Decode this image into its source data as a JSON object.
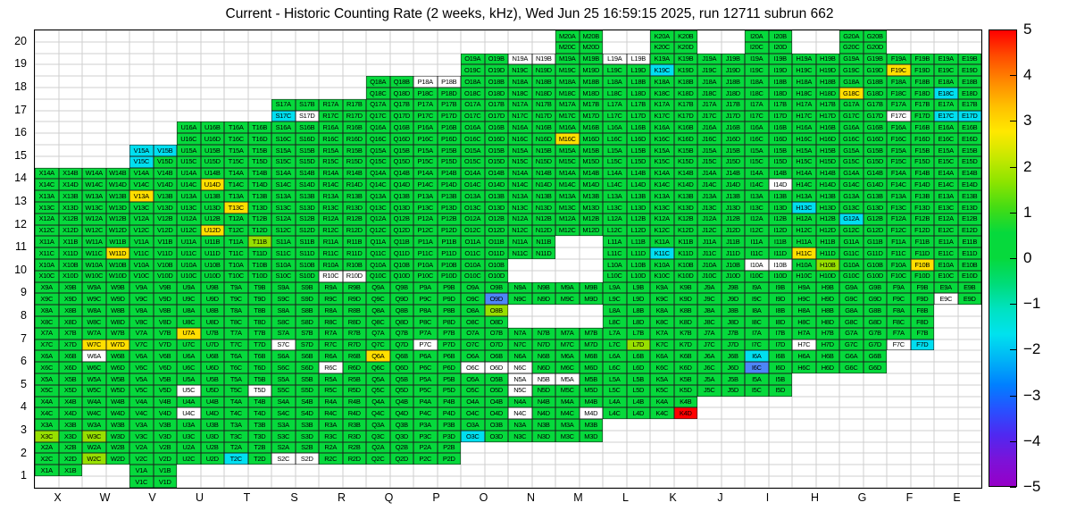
{
  "title": "Current - Historic Counting Rate (2 weeks, kHz), Wed Jun 25 16:59:15 2025, run 12711 subrun 662",
  "axes": {
    "x_labels": [
      "X",
      "W",
      "V",
      "U",
      "T",
      "S",
      "R",
      "Q",
      "P",
      "O",
      "N",
      "M",
      "L",
      "K",
      "J",
      "I",
      "H",
      "G",
      "F",
      "E"
    ],
    "y_labels": [
      "20",
      "19",
      "18",
      "17",
      "16",
      "15",
      "14",
      "13",
      "12",
      "11",
      "10",
      "9",
      "8",
      "7",
      "6",
      "5",
      "4",
      "3",
      "2",
      "1"
    ]
  },
  "colorbar": {
    "min": -5,
    "max": 5,
    "tick_labels": [
      "5",
      "4",
      "3",
      "2",
      "1",
      "0",
      "−1",
      "−2",
      "−3",
      "−4",
      "−5"
    ],
    "gradient_top_to_bottom": [
      "#ff0000",
      "#ff4b00",
      "#ff8800",
      "#ffc000",
      "#ffe800",
      "#c8e800",
      "#8ce400",
      "#44dc14",
      "#06d93c",
      "#06d93c",
      "#00dc78",
      "#00e2c0",
      "#00e2ee",
      "#00b4f6",
      "#0080ff",
      "#2850ff",
      "#5028f0",
      "#7c12d8",
      "#9600c8"
    ]
  },
  "chart_data": {
    "type": "heatmap",
    "label_format": "{col}{row}{sub}",
    "sub_labels": [
      "A",
      "B",
      "C",
      "D"
    ],
    "code_colors": {
      "g": "#06d93c",
      "l": "#97e000",
      "y": "#ffdf00",
      "r": "#ff0000",
      "c": "#00dff0",
      "b": "#4e86f8",
      "w": "#ffffff",
      "e": "transparent"
    },
    "code_values": {
      "g": 0,
      "l": 1,
      "y": 1.5,
      "r": 5,
      "c": -1.5,
      "b": -2.5,
      "w": null,
      "e": null
    },
    "rows": [
      {
        "y": 20,
        "cells": {
          "M": "gggg",
          "K": "gggg",
          "I": "gggg",
          "G": "gggg"
        }
      },
      {
        "y": 19,
        "cells": {
          "O": "gggg",
          "N": "wwgg",
          "M": "gggg",
          "L": "wwgg",
          "K": "ggcg",
          "J": "gggg",
          "I": "gggg",
          "H": "gggg",
          "G": "gggg",
          "F": "ggyg",
          "E": "gggg"
        }
      },
      {
        "y": 18,
        "cells": {
          "Q": "gggg",
          "P": "wwgg",
          "O": "gggg",
          "N": "gggg",
          "M": "gggg",
          "L": "gggg",
          "K": "gggg",
          "J": "gggg",
          "I": "gggg",
          "H": "gggg",
          "G": "ggyg",
          "F": "gggg",
          "E": "ggcg"
        }
      },
      {
        "y": 17,
        "cells": {
          "S": "ggcw",
          "R": "gggg",
          "Q": "gggg",
          "P": "gggg",
          "O": "gggg",
          "N": "gggg",
          "M": "gggg",
          "L": "gggg",
          "K": "gggg",
          "J": "gggg",
          "I": "gggg",
          "H": "gggg",
          "G": "gggg",
          "F": "ggwg",
          "E": "ggcc"
        }
      },
      {
        "y": 16,
        "cells": {
          "U": "gggg",
          "T": "gggg",
          "S": "gggg",
          "R": "gggg",
          "Q": "gggg",
          "P": "gggg",
          "O": "gggg",
          "N": "gggg",
          "M": "ggyg",
          "L": "gggg",
          "K": "gggg",
          "J": "gggg",
          "I": "gggg",
          "H": "gggg",
          "G": "gggg",
          "F": "gggg",
          "E": "gggg"
        }
      },
      {
        "y": 15,
        "cells": {
          "V": "cccg",
          "U": "gggg",
          "T": "gggg",
          "S": "gggg",
          "R": "gggg",
          "Q": "gggg",
          "P": "gggg",
          "O": "gggg",
          "N": "gggg",
          "M": "gggg",
          "L": "gggg",
          "K": "gggg",
          "J": "gggg",
          "I": "gggg",
          "H": "gggg",
          "G": "gggg",
          "F": "gggg",
          "E": "gggg"
        }
      },
      {
        "y": 14,
        "cells": {
          "X": "gggg",
          "W": "gggg",
          "V": "gggg",
          "U": "gggy",
          "T": "gggg",
          "S": "gggg",
          "R": "gggg",
          "Q": "gggg",
          "P": "gggg",
          "O": "gggg",
          "N": "gggg",
          "M": "gggg",
          "L": "gggg",
          "K": "gggg",
          "J": "gggg",
          "I": "gggw",
          "H": "gggg",
          "G": "gggg",
          "F": "gggg",
          "E": "gggg"
        }
      },
      {
        "y": 13,
        "cells": {
          "X": "gggg",
          "W": "gggg",
          "V": "yggg",
          "U": "gggg",
          "T": "ggyg",
          "S": "gggg",
          "R": "gggg",
          "Q": "gggg",
          "P": "gggg",
          "O": "gggg",
          "N": "gggg",
          "M": "gggg",
          "L": "gggg",
          "K": "gggg",
          "J": "gggg",
          "I": "gggg",
          "H": "ggcg",
          "G": "gggg",
          "F": "gggg",
          "E": "gggg"
        }
      },
      {
        "y": 12,
        "cells": {
          "X": "gggg",
          "W": "gggg",
          "V": "gggg",
          "U": "gggy",
          "T": "gggg",
          "S": "gggg",
          "R": "gggg",
          "Q": "gggg",
          "P": "gggg",
          "O": "gggg",
          "N": "gggg",
          "M": "gggg",
          "L": "gggg",
          "K": "gggg",
          "J": "gggg",
          "I": "gggg",
          "H": "gggg",
          "G": "cggg",
          "F": "gggg",
          "E": "gggg"
        }
      },
      {
        "y": 11,
        "cells": {
          "X": "gggg",
          "W": "gggy",
          "V": "gggg",
          "U": "gggg",
          "T": "glgg",
          "S": "gggg",
          "R": "gggg",
          "Q": "gggg",
          "P": "gggg",
          "O": "gggg",
          "N": "gggg",
          "L": "gggg",
          "K": "ggcg",
          "J": "gggg",
          "I": "gggg",
          "H": "ggyg",
          "G": "gggg",
          "F": "gggg",
          "E": "gggg"
        }
      },
      {
        "y": 10,
        "cells": {
          "X": "gggg",
          "W": "gggg",
          "V": "gggg",
          "U": "gggg",
          "T": "gggg",
          "S": "gggg",
          "R": "ggww",
          "Q": "gggg",
          "P": "gggg",
          "O": "gggg",
          "L": "gggg",
          "K": "gggg",
          "J": "gggg",
          "I": "wwgg",
          "H": "glgg",
          "G": "gggg",
          "F": "gygg",
          "E": "gggg"
        }
      },
      {
        "y": 9,
        "cells": {
          "X": "gggg",
          "W": "gggg",
          "V": "gggg",
          "U": "gggg",
          "T": "gggg",
          "S": "gggg",
          "R": "gggg",
          "Q": "gggg",
          "P": "gggg",
          "O": "gggb",
          "N": "gggg",
          "M": "gggg",
          "L": "gggg",
          "K": "gggg",
          "J": "gggg",
          "I": "gggg",
          "H": "gggg",
          "G": "gggg",
          "F": "gggg",
          "E": "ggwg"
        }
      },
      {
        "y": 8,
        "cells": {
          "X": "gggg",
          "W": "gggg",
          "V": "gggg",
          "U": "gggg",
          "T": "gggg",
          "S": "gggg",
          "R": "gggg",
          "Q": "gggg",
          "P": "gggg",
          "O": "glgg",
          "L": "gggg",
          "K": "gggg",
          "J": "gggg",
          "I": "gggg",
          "H": "gggg",
          "G": "gggg",
          "F": "gggg"
        }
      },
      {
        "y": 7,
        "cells": {
          "X": "gggg",
          "W": "ggyy",
          "V": "gggg",
          "U": "yggg",
          "T": "gggg",
          "S": "ggwg",
          "R": "gggg",
          "Q": "gggg",
          "P": "ggwg",
          "O": "gggg",
          "N": "gggg",
          "M": "gggg",
          "L": "gggl",
          "K": "gggg",
          "J": "gggg",
          "I": "gggg",
          "H": "ggwg",
          "G": "gggg",
          "F": "ggwc"
        }
      },
      {
        "y": 6,
        "cells": {
          "X": "gggg",
          "W": "wggg",
          "V": "gggg",
          "U": "gggg",
          "T": "gggg",
          "S": "gggg",
          "R": "ggwg",
          "Q": "yggg",
          "P": "gggg",
          "O": "ggww",
          "N": "ggwg",
          "M": "gggg",
          "L": "gggg",
          "K": "gggg",
          "J": "gggg",
          "I": "cgbg",
          "H": "gggg",
          "G": "gggg"
        }
      },
      {
        "y": 5,
        "cells": {
          "X": "gggg",
          "W": "gggg",
          "V": "gggg",
          "U": "ggwg",
          "T": "gggw",
          "S": "gggg",
          "R": "gggg",
          "Q": "gggg",
          "P": "gggg",
          "O": "gggg",
          "N": "wwwg",
          "M": "wggg",
          "L": "gggg",
          "K": "gggg",
          "J": "gggg",
          "I": "gggg"
        }
      },
      {
        "y": 4,
        "cells": {
          "X": "gggg",
          "W": "gggg",
          "V": "gggg",
          "U": "ggwg",
          "T": "gggg",
          "S": "gggg",
          "R": "gggg",
          "Q": "gggg",
          "P": "gggg",
          "O": "gggg",
          "N": "ggwg",
          "M": "gggw",
          "L": "gggg",
          "K": "gggr"
        }
      },
      {
        "y": 3,
        "cells": {
          "X": "gglg",
          "W": "gglg",
          "V": "gggg",
          "U": "gggg",
          "T": "gggg",
          "S": "gggg",
          "R": "gggg",
          "Q": "gggg",
          "P": "gggg",
          "O": "ggcg",
          "N": "gggg",
          "M": "gggg"
        }
      },
      {
        "y": 2,
        "cells": {
          "X": "gggg",
          "W": "gglg",
          "V": "gggg",
          "U": "gggg",
          "T": "ggcg",
          "S": "ggww",
          "R": "gggg",
          "Q": "gggg",
          "P": "gggg"
        }
      },
      {
        "y": 1,
        "cells": {
          "X": "ggee",
          "V": "gggg"
        }
      }
    ]
  }
}
